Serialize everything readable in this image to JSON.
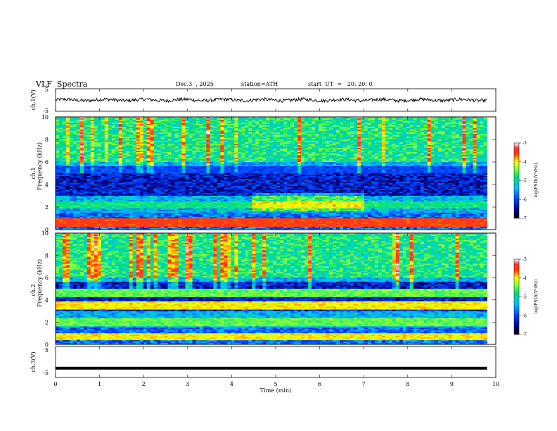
{
  "header": {
    "title": "VLF  Spectra",
    "date": "Dec.3  , 2025",
    "station": "station=ATH",
    "start_ut": "start  UT  =   20: 20: 0"
  },
  "chart_data": [
    {
      "type": "line",
      "panel": "ch1-waveform",
      "ylabel": "ch.1(V)",
      "ylim": [
        -5,
        5
      ],
      "y_ticks": [
        "5",
        "-5"
      ],
      "x_range_min": [
        0,
        9.8
      ],
      "approx_baseline_v": 0,
      "approx_amplitude_v": 1.5
    },
    {
      "type": "heatmap",
      "panel": "ch1-spectrogram",
      "ylabel": "ch.1\nFrequency  (kHz)",
      "ylim_khz": [
        0,
        10
      ],
      "y_ticks": [
        "0",
        "2",
        "4",
        "6",
        "8",
        "10"
      ],
      "x_range_min": [
        0,
        9.8
      ],
      "colorbar": {
        "label": "log(PSD)(V²/Hz)",
        "range": [
          -7,
          -3
        ],
        "ticks": [
          "-3",
          "-4",
          "-5",
          "-6",
          "-7"
        ]
      },
      "bands": [
        {
          "freq_khz": 0.6,
          "log_psd": -3.5
        },
        {
          "freq_khz": 2.2,
          "log_psd": -4.8
        },
        {
          "freq_khz": 5.3,
          "log_psd": -6.0
        }
      ],
      "notes": "diffuse hiss enhancement around 2-3 kHz between 4.5 and 7 min"
    },
    {
      "type": "heatmap",
      "panel": "ch2-spectrogram",
      "ylabel": "ch.2\nFrequency  (kHz)",
      "ylim_khz": [
        0,
        10
      ],
      "y_ticks": [
        "0",
        "2",
        "4",
        "6",
        "8",
        "10"
      ],
      "x_range_min": [
        0,
        9.8
      ],
      "colorbar": {
        "label": "log(PSD)(V²/Hz)",
        "range": [
          -7,
          -3
        ],
        "ticks": [
          "-3",
          "-4",
          "-5",
          "-6",
          "-7"
        ]
      },
      "bands": [
        {
          "freq_khz": 0.7,
          "log_psd": -4.0
        },
        {
          "freq_khz": 2.0,
          "log_psd": -4.5
        },
        {
          "freq_khz": 3.5,
          "log_psd": -4.0
        },
        {
          "freq_khz": 4.6,
          "log_psd": -4.5
        }
      ]
    },
    {
      "type": "line",
      "panel": "ch3-waveform",
      "ylabel": "ch.3(V)",
      "ylim": [
        -5,
        5
      ],
      "y_ticks": [
        "5",
        "0",
        "-5"
      ],
      "x_range_min": [
        0,
        9.8
      ],
      "approx_baseline_v": -2
    }
  ],
  "xaxis": {
    "xlabel": "Time  (min)",
    "xlim": [
      0,
      10
    ],
    "ticks": [
      "0",
      "1",
      "2",
      "3",
      "4",
      "5",
      "6",
      "7",
      "8",
      "9",
      "10"
    ]
  }
}
